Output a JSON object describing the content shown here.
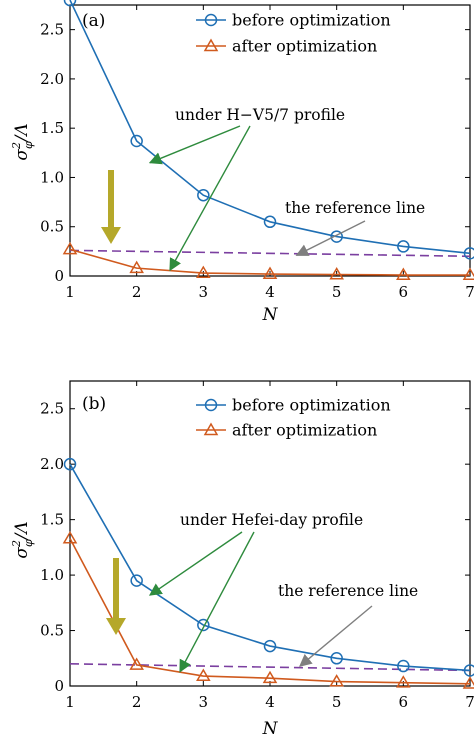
{
  "chart_data": [
    {
      "type": "line",
      "panel_label": "(a)",
      "x": [
        1,
        2,
        3,
        4,
        5,
        6,
        7
      ],
      "xlabel": "N",
      "ylabel": "σ²_φ/Λ",
      "ylabel_main": "σ",
      "ylabel_sup": "2",
      "ylabel_sub": "φ",
      "ylabel_tail": "/Λ",
      "xlim": [
        1,
        7
      ],
      "ylim": [
        0,
        2.75
      ],
      "xticks": [
        "1",
        "2",
        "3",
        "4",
        "5",
        "6",
        "7"
      ],
      "yticks": [
        {
          "value": 0,
          "label": "0"
        },
        {
          "value": 0.5,
          "label": "0.5"
        },
        {
          "value": 1.0,
          "label": "1.0"
        },
        {
          "value": 1.5,
          "label": "1.5"
        },
        {
          "value": 2.0,
          "label": "2.0"
        },
        {
          "value": 2.5,
          "label": "2.5"
        }
      ],
      "series": [
        {
          "name": "before optimization",
          "color": "#1f6fb4",
          "marker": "circle",
          "values": [
            2.8,
            1.37,
            0.82,
            0.55,
            0.4,
            0.3,
            0.23
          ]
        },
        {
          "name": "after optimization",
          "color": "#d05a1e",
          "marker": "triangle",
          "values": [
            0.27,
            0.08,
            0.03,
            0.02,
            0.015,
            0.01,
            0.01
          ]
        }
      ],
      "reference_line": {
        "label": "the reference line",
        "color": "#7b3fa0",
        "values": [
          0.26,
          0.2
        ]
      },
      "annotations": [
        {
          "text": "under H−V5/7 profile",
          "arrow_color": "#2e8b3d",
          "targets": [
            [
              2.2,
              1.15
            ],
            [
              2.5,
              0.06
            ]
          ]
        },
        {
          "text": "the reference line",
          "arrow_color": "#7f7f7f",
          "targets": [
            [
              4.4,
              0.21
            ]
          ]
        }
      ],
      "big_arrow_color": "#b5a82a",
      "grid": false,
      "legend": "top-right"
    },
    {
      "type": "line",
      "panel_label": "(b)",
      "x": [
        1,
        2,
        3,
        4,
        5,
        6,
        7
      ],
      "xlabel": "N",
      "ylabel": "σ²_φ/Λ",
      "ylabel_main": "σ",
      "ylabel_sup": "2",
      "ylabel_sub": "φ",
      "ylabel_tail": "/Λ",
      "xlim": [
        1,
        7
      ],
      "ylim": [
        0,
        2.75
      ],
      "xticks": [
        "1",
        "2",
        "3",
        "4",
        "5",
        "6",
        "7"
      ],
      "yticks": [
        {
          "value": 0,
          "label": "0"
        },
        {
          "value": 0.5,
          "label": "0.5"
        },
        {
          "value": 1.0,
          "label": "1.0"
        },
        {
          "value": 1.5,
          "label": "1.5"
        },
        {
          "value": 2.0,
          "label": "2.0"
        },
        {
          "value": 2.5,
          "label": "2.5"
        }
      ],
      "series": [
        {
          "name": "before optimization",
          "color": "#1f6fb4",
          "marker": "circle",
          "values": [
            2.0,
            0.95,
            0.55,
            0.36,
            0.25,
            0.18,
            0.14
          ]
        },
        {
          "name": "after optimization",
          "color": "#d05a1e",
          "marker": "triangle",
          "values": [
            1.33,
            0.19,
            0.09,
            0.07,
            0.04,
            0.03,
            0.02
          ]
        }
      ],
      "reference_line": {
        "label": "the reference line",
        "color": "#7b3fa0",
        "values": [
          0.2,
          0.14
        ]
      },
      "annotations": [
        {
          "text": "under Hefei-day profile",
          "arrow_color": "#2e8b3d",
          "targets": [
            [
              2.2,
              0.82
            ],
            [
              2.65,
              0.13
            ]
          ]
        },
        {
          "text": "the reference line",
          "arrow_color": "#7f7f7f",
          "targets": [
            [
              4.45,
              0.18
            ]
          ]
        }
      ],
      "big_arrow_color": "#b5a82a",
      "grid": false,
      "legend": "top-right"
    }
  ]
}
